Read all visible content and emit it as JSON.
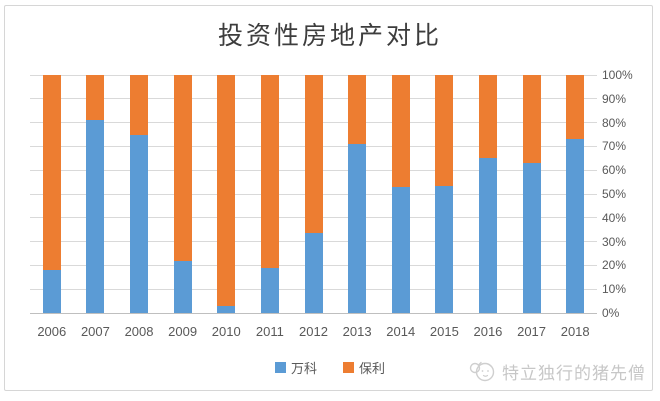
{
  "chart_data": {
    "type": "bar",
    "stacked": "100%",
    "title": "投资性房地产对比",
    "categories": [
      "2006",
      "2007",
      "2008",
      "2009",
      "2010",
      "2011",
      "2012",
      "2013",
      "2014",
      "2015",
      "2016",
      "2017",
      "2018"
    ],
    "series": [
      {
        "key": "wanke",
        "name": "万科",
        "color": "#5B9BD5",
        "values": [
          18,
          81,
          75,
          22,
          3,
          19,
          33.5,
          71,
          53,
          53.5,
          65,
          63,
          73
        ]
      },
      {
        "key": "baoli",
        "name": "保利",
        "color": "#ED7D31",
        "values": [
          82,
          19,
          25,
          78,
          97,
          81,
          66.5,
          29,
          47,
          46.5,
          35,
          37,
          27
        ]
      }
    ],
    "y_axis": {
      "side": "right",
      "min": 0,
      "max": 100,
      "step": 10,
      "tick_labels": [
        "0%",
        "10%",
        "20%",
        "30%",
        "40%",
        "50%",
        "60%",
        "70%",
        "80%",
        "90%",
        "100%"
      ]
    },
    "grid": true,
    "gridline_color": "#D9D9D9",
    "baseline_color": "#BFBFBF",
    "legend_position": "bottom"
  },
  "watermark": {
    "icon": "pig-face-icon",
    "text": "特立独行的猪先僧"
  }
}
